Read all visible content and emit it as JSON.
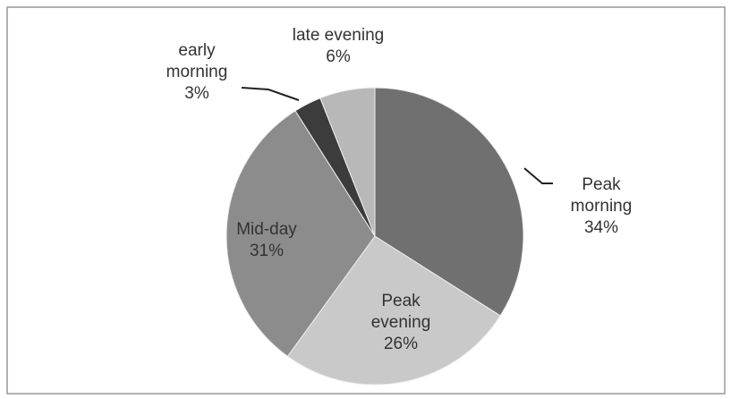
{
  "chart_data": {
    "type": "pie",
    "categories": [
      "Peak morning",
      "Peak evening",
      "Mid-day",
      "early morning",
      "late evening"
    ],
    "values": [
      34,
      26,
      31,
      3,
      6
    ],
    "value_labels": [
      "34%",
      "26%",
      "31%",
      "3%",
      "6%"
    ],
    "colors": [
      "#707070",
      "#c9c9c9",
      "#8c8c8c",
      "#3c3c3c",
      "#b8b8b8"
    ]
  }
}
